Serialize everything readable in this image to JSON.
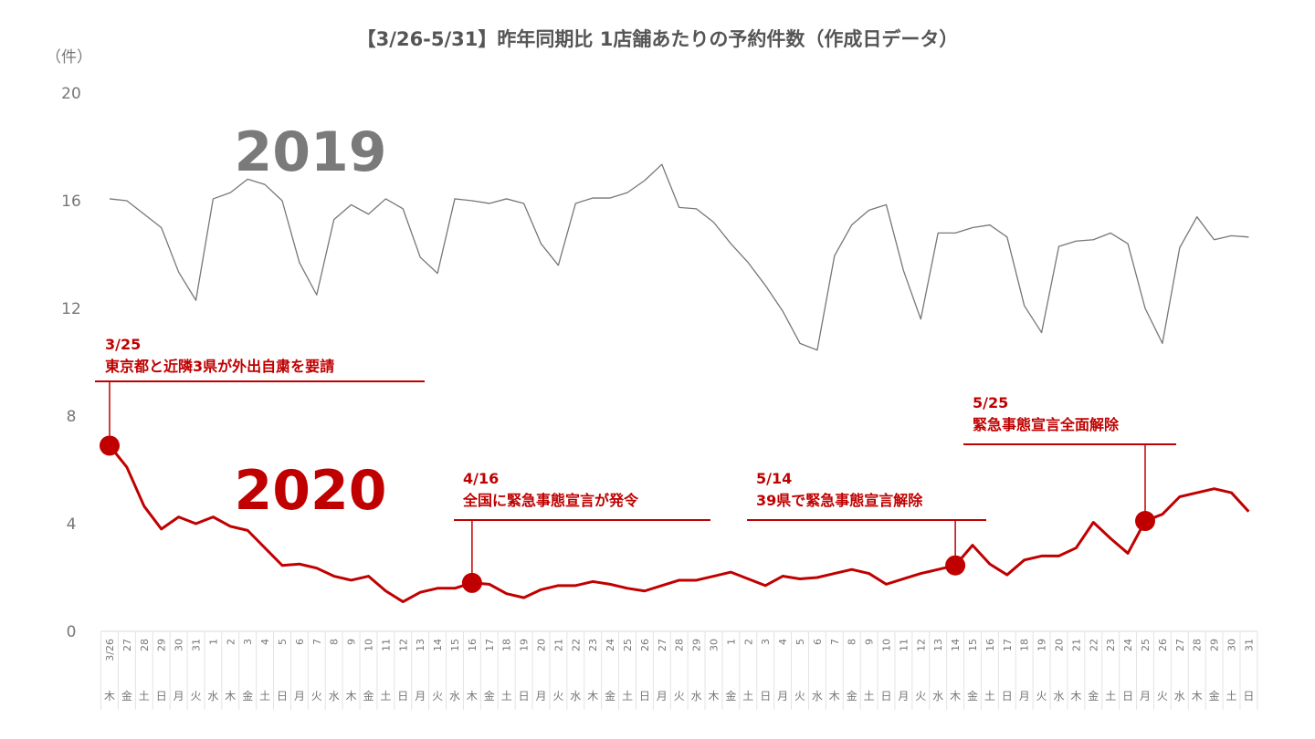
{
  "chart_data": {
    "type": "line",
    "title": "【3/26-5/31】昨年同期比 1店舗あたりの予約件数（作成日データ）",
    "ylabel": "（件）",
    "ylim": [
      0,
      20
    ],
    "yticks": [
      0,
      4,
      8,
      12,
      16,
      20
    ],
    "grid": false,
    "x": [
      "3/26",
      "27",
      "28",
      "29",
      "30",
      "31",
      "1",
      "2",
      "3",
      "4",
      "5",
      "6",
      "7",
      "8",
      "9",
      "10",
      "11",
      "12",
      "13",
      "14",
      "15",
      "16",
      "17",
      "18",
      "19",
      "20",
      "21",
      "22",
      "23",
      "24",
      "25",
      "26",
      "27",
      "28",
      "29",
      "30",
      "1",
      "2",
      "3",
      "4",
      "5",
      "6",
      "7",
      "8",
      "9",
      "10",
      "11",
      "12",
      "13",
      "14",
      "15",
      "16",
      "17",
      "18",
      "19",
      "20",
      "21",
      "22",
      "23",
      "24",
      "25",
      "26",
      "27",
      "28",
      "29",
      "30",
      "31"
    ],
    "weekdays": [
      "木",
      "金",
      "土",
      "日",
      "月",
      "火",
      "水",
      "木",
      "金",
      "土",
      "日",
      "月",
      "火",
      "水",
      "木",
      "金",
      "土",
      "日",
      "月",
      "火",
      "水",
      "木",
      "金",
      "土",
      "日",
      "月",
      "火",
      "水",
      "木",
      "金",
      "土",
      "日",
      "月",
      "火",
      "水",
      "木",
      "金",
      "土",
      "日",
      "月",
      "火",
      "水",
      "木",
      "金",
      "土",
      "日",
      "月",
      "火",
      "水",
      "木",
      "金",
      "土",
      "日",
      "月",
      "火",
      "水",
      "木",
      "金",
      "土",
      "日",
      "月",
      "火",
      "水",
      "木",
      "金",
      "土",
      "日"
    ],
    "series": [
      {
        "name": "2019",
        "color": "#777777",
        "values": [
          16.07,
          16.0,
          15.5,
          15.0,
          13.35,
          12.3,
          16.07,
          16.3,
          16.8,
          16.6,
          16.0,
          13.7,
          12.5,
          15.3,
          15.85,
          15.5,
          16.07,
          15.7,
          13.9,
          13.3,
          16.07,
          16.0,
          15.9,
          16.07,
          15.9,
          14.4,
          13.6,
          15.9,
          16.1,
          16.1,
          16.3,
          16.75,
          17.35,
          15.75,
          15.7,
          15.2,
          14.4,
          13.7,
          12.85,
          11.9,
          10.7,
          10.45,
          13.95,
          15.1,
          15.65,
          15.85,
          13.4,
          11.6,
          14.8,
          14.8,
          15.0,
          15.1,
          14.65,
          12.1,
          11.1,
          14.3,
          14.5,
          14.55,
          14.8,
          14.4,
          12.0,
          10.7,
          14.25,
          15.4,
          14.55,
          14.7,
          14.65
        ]
      },
      {
        "name": "2020",
        "color": "#c00000",
        "values": [
          6.9,
          6.1,
          4.65,
          3.8,
          4.25,
          4.0,
          4.25,
          3.9,
          3.75,
          3.1,
          2.45,
          2.5,
          2.35,
          2.05,
          1.9,
          2.05,
          1.5,
          1.1,
          1.45,
          1.6,
          1.6,
          1.8,
          1.75,
          1.4,
          1.25,
          1.55,
          1.7,
          1.7,
          1.85,
          1.75,
          1.6,
          1.5,
          1.7,
          1.9,
          1.9,
          2.05,
          2.2,
          1.95,
          1.7,
          2.05,
          1.95,
          2.0,
          2.15,
          2.3,
          2.15,
          1.75,
          1.95,
          2.15,
          2.3,
          2.45,
          3.2,
          2.5,
          2.1,
          2.65,
          2.8,
          2.8,
          3.1,
          4.05,
          3.45,
          2.9,
          4.1,
          4.35,
          5.0,
          5.15,
          5.3,
          5.15,
          4.45
        ]
      }
    ],
    "annotations": [
      {
        "date": "3/25",
        "text": "東京都と近隣3県が外出自粛を要請",
        "point_index": 0
      },
      {
        "date": "4/16",
        "text": "全国に緊急事態宣言が発令",
        "point_index": 21
      },
      {
        "date": "5/14",
        "text": "39県で緊急事態宣言解除",
        "point_index": 49
      },
      {
        "date": "5/25",
        "text": "緊急事態宣言全面解除",
        "point_index": 60
      }
    ]
  }
}
